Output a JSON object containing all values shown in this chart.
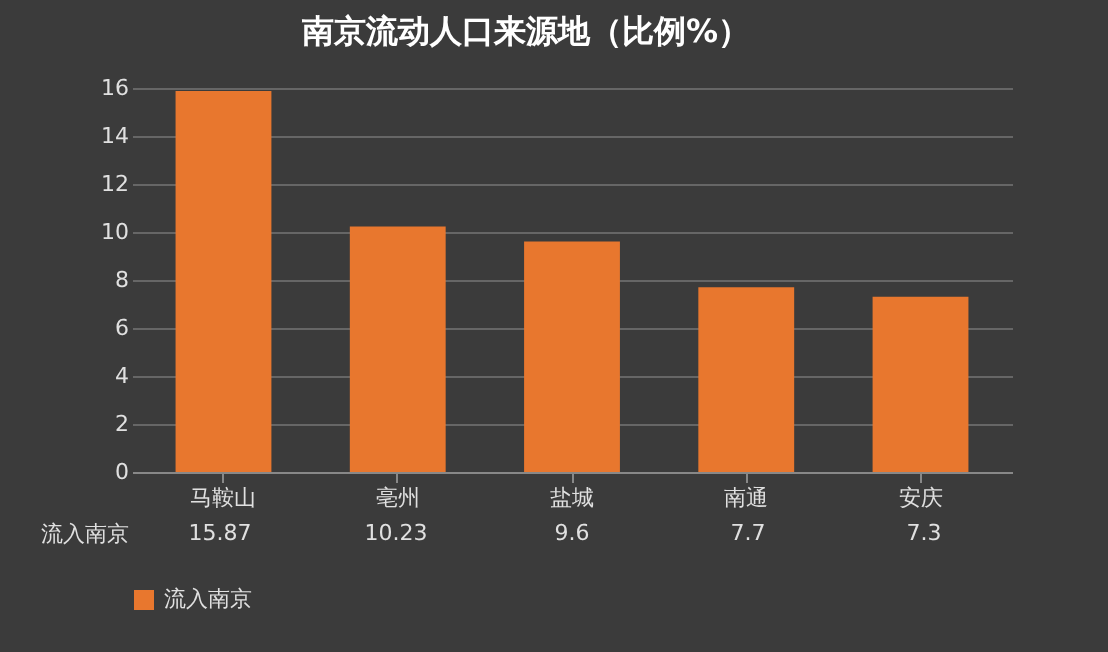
{
  "chart_data": {
    "type": "bar",
    "title": "南京流动人口来源地（比例%）",
    "categories": [
      "马鞍山",
      "亳州",
      "盐城",
      "南通",
      "安庆"
    ],
    "series": [
      {
        "name": "流入南京",
        "color": "#e8772e",
        "values": [
          15.87,
          10.23,
          9.6,
          7.7,
          7.3
        ]
      }
    ],
    "ylim": [
      0,
      16
    ],
    "yticks": [
      0,
      2,
      4,
      6,
      8,
      10,
      12,
      14,
      16
    ],
    "grid": "y",
    "legend": "bottom",
    "data_labels": true
  }
}
